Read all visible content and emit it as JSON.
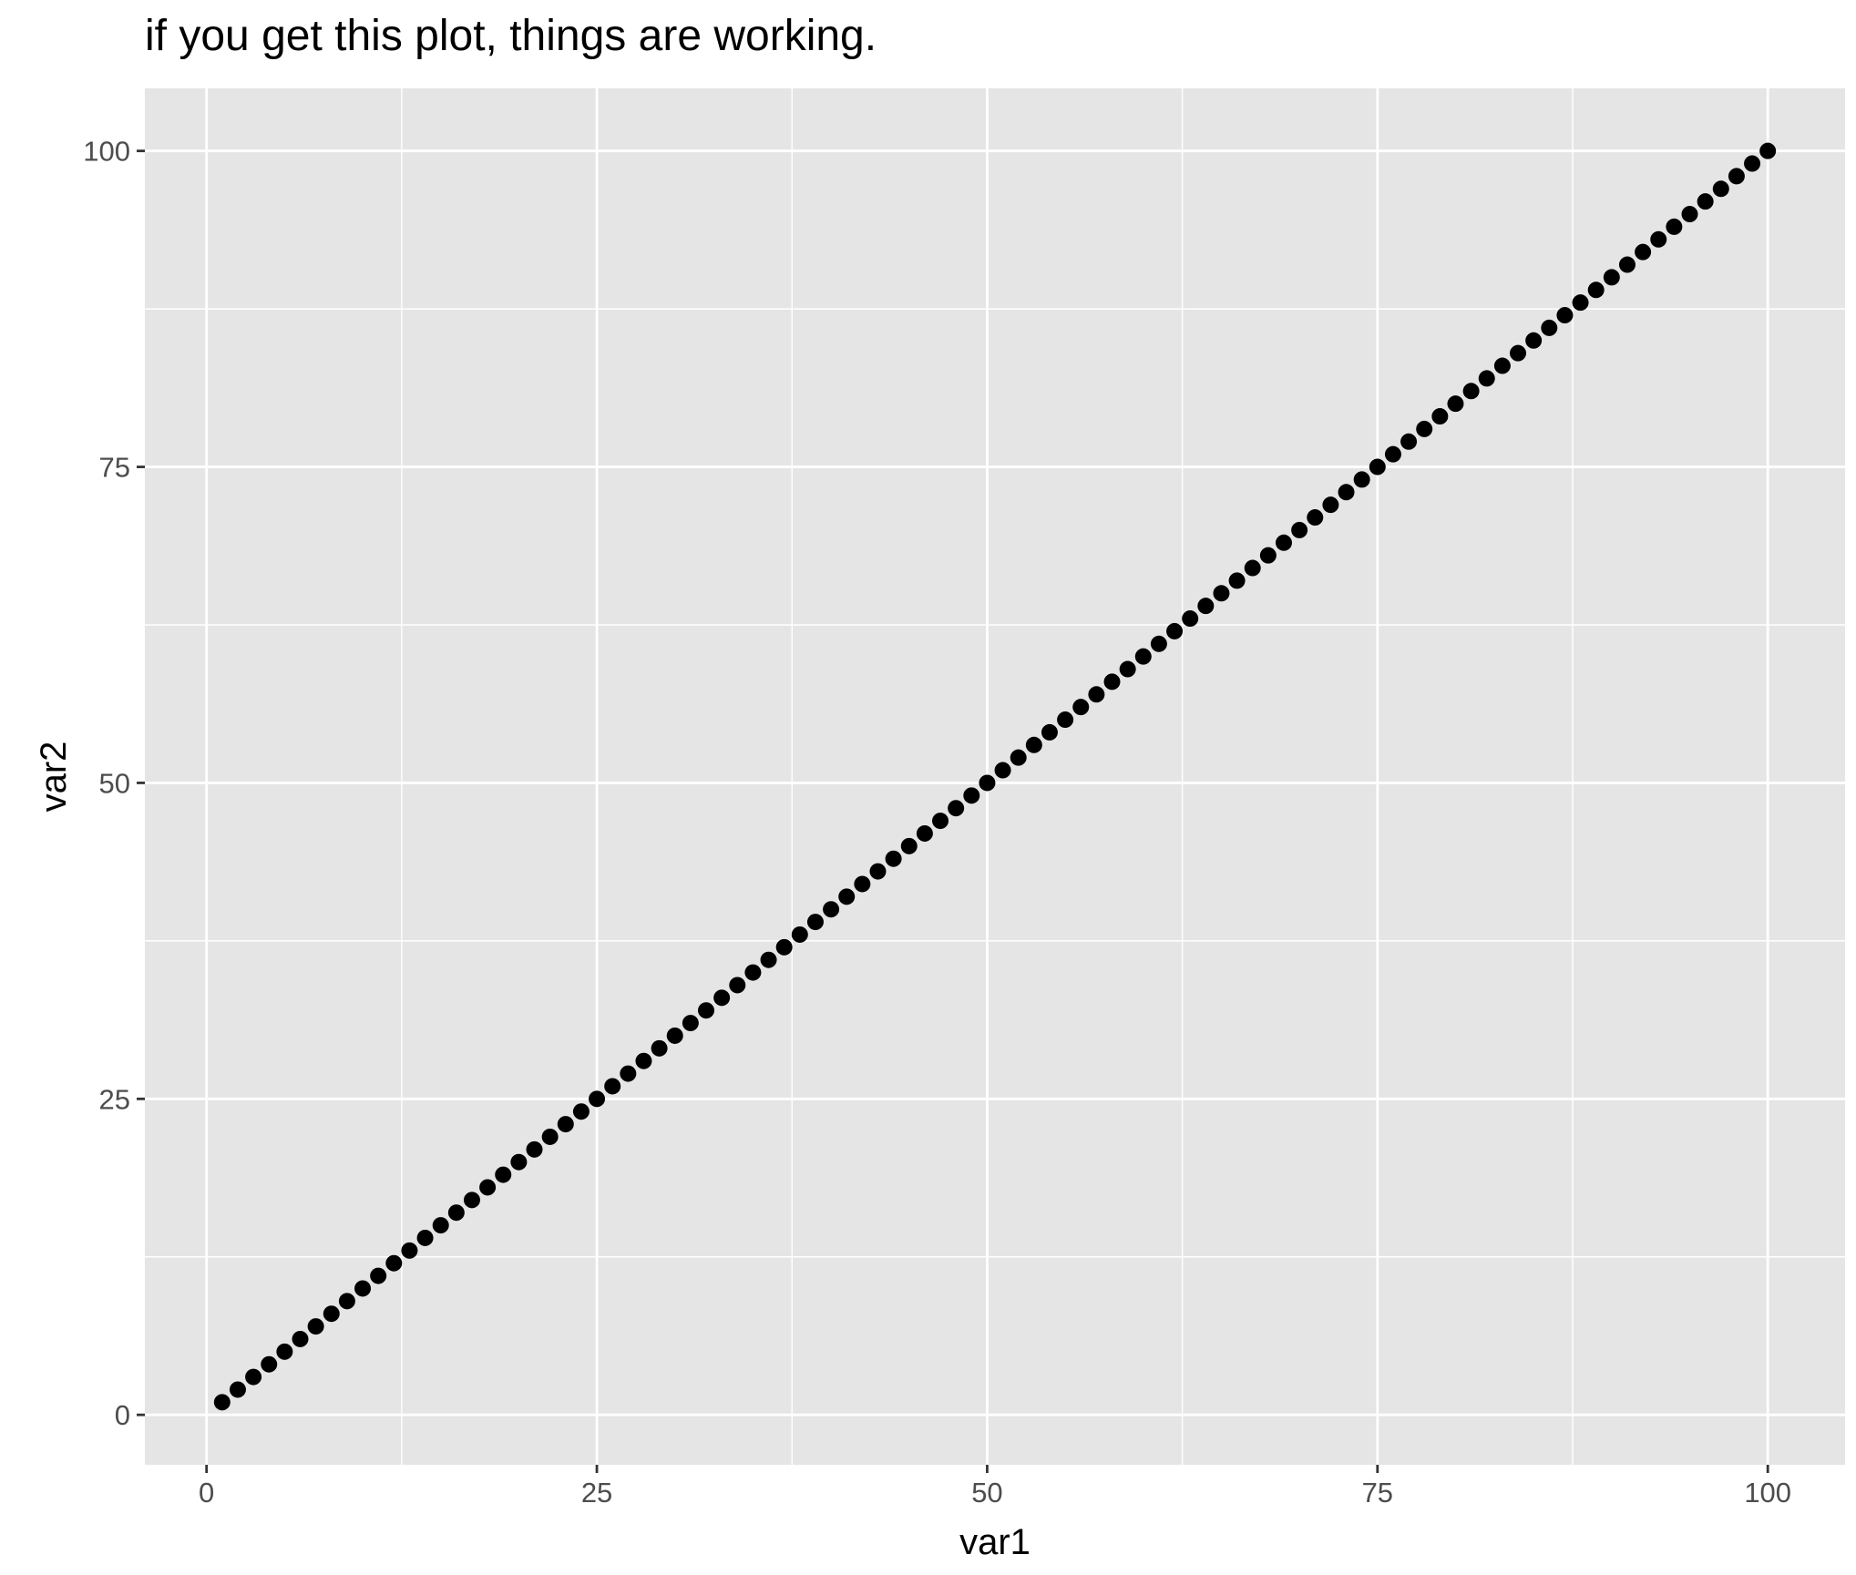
{
  "chart_data": {
    "type": "scatter",
    "title": "if you get this plot, things are working.",
    "xlabel": "var1",
    "ylabel": "var2",
    "xlim": [
      -3.95,
      104.95
    ],
    "ylim": [
      -3.95,
      104.95
    ],
    "x_ticks": [
      0,
      25,
      50,
      75,
      100
    ],
    "y_ticks": [
      0,
      25,
      50,
      75,
      100
    ],
    "x_minor": [
      12.5,
      37.5,
      62.5,
      87.5
    ],
    "y_minor": [
      12.5,
      37.5,
      62.5,
      87.5
    ],
    "grid": true,
    "panel_background": "#e5e5e5",
    "grid_color": "#ffffff",
    "point_color": "#000000",
    "series": [
      {
        "x": [
          1,
          2,
          3,
          4,
          5,
          6,
          7,
          8,
          9,
          10,
          11,
          12,
          13,
          14,
          15,
          16,
          17,
          18,
          19,
          20,
          21,
          22,
          23,
          24,
          25,
          26,
          27,
          28,
          29,
          30,
          31,
          32,
          33,
          34,
          35,
          36,
          37,
          38,
          39,
          40,
          41,
          42,
          43,
          44,
          45,
          46,
          47,
          48,
          49,
          50,
          51,
          52,
          53,
          54,
          55,
          56,
          57,
          58,
          59,
          60,
          61,
          62,
          63,
          64,
          65,
          66,
          67,
          68,
          69,
          70,
          71,
          72,
          73,
          74,
          75,
          76,
          77,
          78,
          79,
          80,
          81,
          82,
          83,
          84,
          85,
          86,
          87,
          88,
          89,
          90,
          91,
          92,
          93,
          94,
          95,
          96,
          97,
          98,
          99,
          100
        ],
        "y": [
          1,
          2,
          3,
          4,
          5,
          6,
          7,
          8,
          9,
          10,
          11,
          12,
          13,
          14,
          15,
          16,
          17,
          18,
          19,
          20,
          21,
          22,
          23,
          24,
          25,
          26,
          27,
          28,
          29,
          30,
          31,
          32,
          33,
          34,
          35,
          36,
          37,
          38,
          39,
          40,
          41,
          42,
          43,
          44,
          45,
          46,
          47,
          48,
          49,
          50,
          51,
          52,
          53,
          54,
          55,
          56,
          57,
          58,
          59,
          60,
          61,
          62,
          63,
          64,
          65,
          66,
          67,
          68,
          69,
          70,
          71,
          72,
          73,
          74,
          75,
          76,
          77,
          78,
          79,
          80,
          81,
          82,
          83,
          84,
          85,
          86,
          87,
          88,
          89,
          90,
          91,
          92,
          93,
          94,
          95,
          96,
          97,
          98,
          99,
          100
        ]
      }
    ]
  }
}
